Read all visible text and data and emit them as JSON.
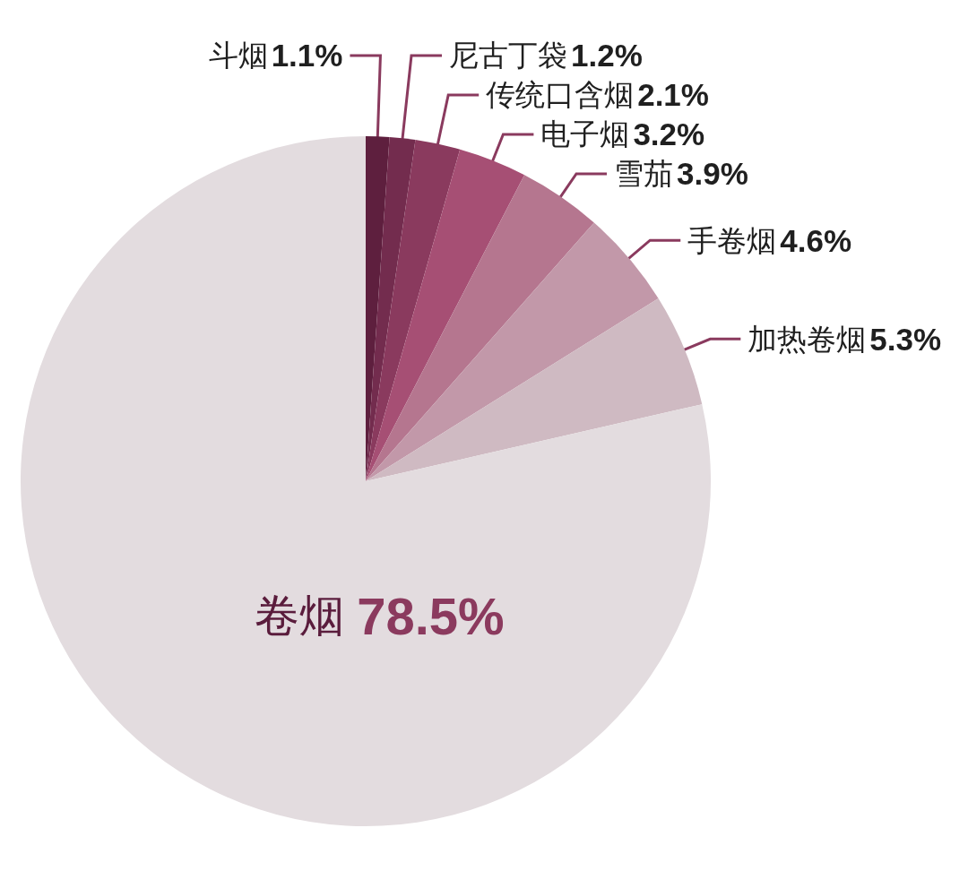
{
  "chart_data": {
    "type": "pie",
    "categories": [
      "斗烟",
      "尼古丁袋",
      "传统口含烟",
      "电子烟",
      "雪茄",
      "手卷烟",
      "加热卷烟",
      "卷烟"
    ],
    "values": [
      1.1,
      1.2,
      2.1,
      3.2,
      3.9,
      4.6,
      5.3,
      78.5
    ],
    "colors": [
      "#5e1f3e",
      "#732c4e",
      "#8a3a5e",
      "#a64f74",
      "#b5768f",
      "#c298a9",
      "#cfbac2",
      "#e3dcdf"
    ],
    "value_labels": [
      "1.1%",
      "1.2%",
      "2.1%",
      "3.2%",
      "3.9%",
      "4.6%",
      "5.3%",
      "78.5%"
    ]
  }
}
